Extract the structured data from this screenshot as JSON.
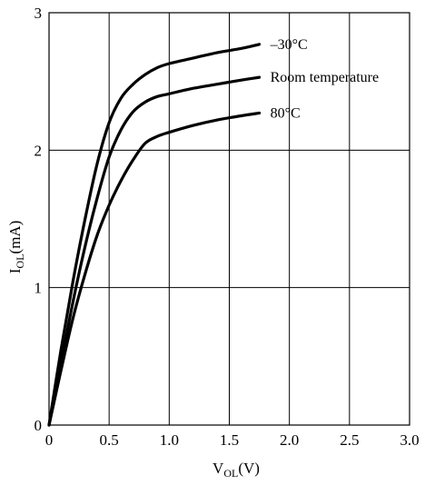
{
  "chart_data": {
    "type": "line",
    "xlabel": {
      "main": "V",
      "sub": "OL",
      "unit": "(V)"
    },
    "ylabel": {
      "main": "I",
      "sub": "OL",
      "unit": "(mA)"
    },
    "xlim": [
      0,
      3.0
    ],
    "ylim": [
      0,
      3
    ],
    "xticks": [
      "0",
      "0.5",
      "1.0",
      "1.5",
      "2.0",
      "2.5",
      "3.0"
    ],
    "xtick_values": [
      0,
      0.5,
      1.0,
      1.5,
      2.0,
      2.5,
      3.0
    ],
    "yticks": [
      "0",
      "1",
      "2",
      "3"
    ],
    "ytick_values": [
      0,
      1,
      2,
      3
    ],
    "grid": true,
    "series": [
      {
        "name": "–30°C",
        "x": [
          0,
          0.1,
          0.2,
          0.3,
          0.4,
          0.5,
          0.6,
          0.7,
          0.8,
          0.9,
          1.0,
          1.2,
          1.4,
          1.6,
          1.75
        ],
        "y": [
          0,
          0.55,
          1.05,
          1.5,
          1.9,
          2.2,
          2.38,
          2.48,
          2.55,
          2.6,
          2.63,
          2.67,
          2.71,
          2.74,
          2.77
        ]
      },
      {
        "name": "Room temperature",
        "x": [
          0,
          0.1,
          0.2,
          0.3,
          0.4,
          0.5,
          0.6,
          0.7,
          0.8,
          0.9,
          1.0,
          1.2,
          1.4,
          1.6,
          1.75
        ],
        "y": [
          0,
          0.45,
          0.9,
          1.3,
          1.65,
          1.95,
          2.15,
          2.28,
          2.35,
          2.39,
          2.41,
          2.45,
          2.48,
          2.51,
          2.53
        ]
      },
      {
        "name": "80°C",
        "x": [
          0,
          0.1,
          0.2,
          0.3,
          0.4,
          0.5,
          0.6,
          0.7,
          0.8,
          0.9,
          1.0,
          1.2,
          1.4,
          1.6,
          1.75
        ],
        "y": [
          0,
          0.4,
          0.78,
          1.1,
          1.38,
          1.6,
          1.78,
          1.93,
          2.05,
          2.1,
          2.13,
          2.18,
          2.22,
          2.25,
          2.27
        ]
      }
    ]
  }
}
